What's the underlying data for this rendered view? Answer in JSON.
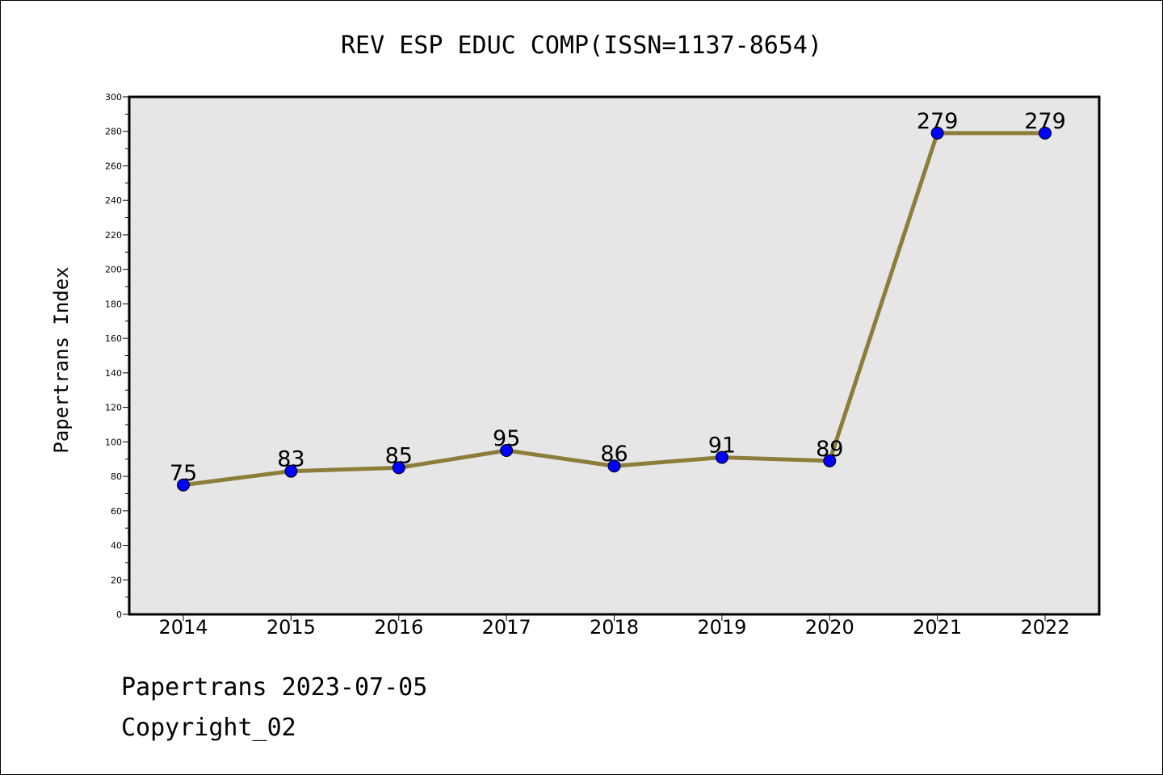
{
  "chart_data": {
    "type": "line",
    "title": "REV ESP EDUC COMP(ISSN=1137-8654)",
    "xlabel": "",
    "ylabel": "Papertrans Index",
    "categories": [
      "2014",
      "2015",
      "2016",
      "2017",
      "2018",
      "2019",
      "2020",
      "2021",
      "2022"
    ],
    "series": [
      {
        "values": [
          75,
          83,
          85,
          95,
          86,
          91,
          89,
          279,
          279
        ]
      }
    ],
    "ylim": [
      0,
      300
    ],
    "yticks": [
      0,
      20,
      40,
      60,
      80,
      100,
      120,
      140,
      160,
      180,
      200,
      220,
      240,
      260,
      280,
      300
    ],
    "grid": false,
    "colors": {
      "line": "#8c7d3a",
      "marker": "#0000ff",
      "plot_background": "#e6e6e6"
    }
  },
  "footer": {
    "date_line": "Papertrans 2023-07-05",
    "copyright": "Copyright_02"
  }
}
